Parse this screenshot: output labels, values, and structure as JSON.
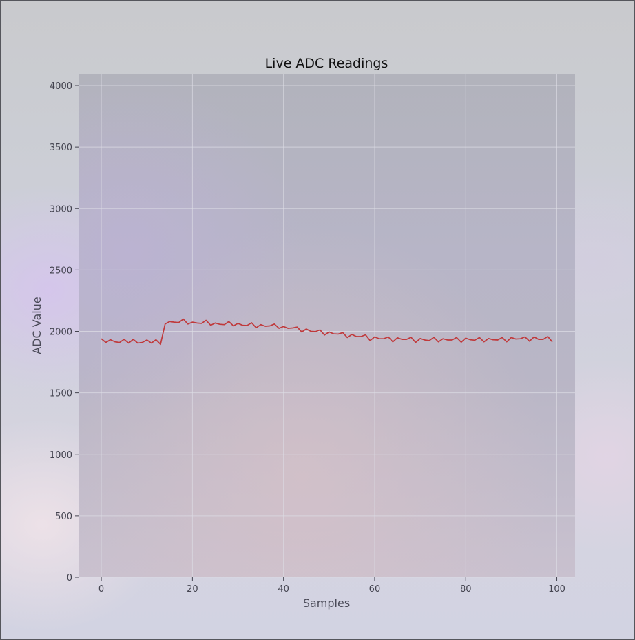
{
  "chart_data": {
    "type": "line",
    "title": "Live ADC Readings",
    "xlabel": "Samples",
    "ylabel": "ADC Value",
    "xlim": [
      -5,
      104
    ],
    "ylim": [
      0,
      4095
    ],
    "xticks": [
      0,
      20,
      40,
      60,
      80,
      100
    ],
    "yticks": [
      0,
      500,
      1000,
      1500,
      2000,
      2500,
      3000,
      3500,
      4000
    ],
    "grid": true,
    "line_color": "#c0393b",
    "series": [
      {
        "x": [
          0,
          1,
          2,
          3,
          4,
          5,
          6,
          7,
          8,
          9,
          10,
          11,
          12,
          13,
          14,
          15,
          16,
          17,
          18,
          19,
          20,
          21,
          22,
          23,
          24,
          25,
          26,
          27,
          28,
          29,
          30,
          31,
          32,
          33,
          34,
          35,
          36,
          37,
          38,
          39,
          40,
          41,
          42,
          43,
          44,
          45,
          46,
          47,
          48,
          49,
          50,
          51,
          52,
          53,
          54,
          55,
          56,
          57,
          58,
          59,
          60,
          61,
          62,
          63,
          64,
          65,
          66,
          67,
          68,
          69,
          70,
          71,
          72,
          73,
          74,
          75,
          76,
          77,
          78,
          79,
          80,
          81,
          82,
          83,
          84,
          85,
          86,
          87,
          88,
          89,
          90,
          91,
          92,
          93,
          94,
          95,
          96,
          97,
          98,
          99
        ],
        "values": [
          1940,
          1910,
          1932,
          1915,
          1910,
          1935,
          1905,
          1935,
          1905,
          1910,
          1930,
          1905,
          1932,
          1895,
          2060,
          2080,
          2075,
          2072,
          2100,
          2060,
          2075,
          2068,
          2065,
          2090,
          2050,
          2068,
          2058,
          2055,
          2080,
          2045,
          2065,
          2050,
          2048,
          2070,
          2030,
          2055,
          2042,
          2045,
          2060,
          2025,
          2040,
          2025,
          2028,
          2035,
          1995,
          2020,
          2000,
          1998,
          2012,
          1970,
          1995,
          1980,
          1978,
          1990,
          1950,
          1975,
          1958,
          1958,
          1972,
          1925,
          1955,
          1940,
          1940,
          1955,
          1915,
          1948,
          1935,
          1935,
          1952,
          1910,
          1942,
          1930,
          1925,
          1952,
          1915,
          1940,
          1930,
          1930,
          1950,
          1912,
          1945,
          1932,
          1928,
          1950,
          1915,
          1942,
          1932,
          1930,
          1950,
          1915,
          1950,
          1938,
          1940,
          1955,
          1920,
          1955,
          1935,
          1935,
          1958,
          1915
        ]
      }
    ]
  }
}
